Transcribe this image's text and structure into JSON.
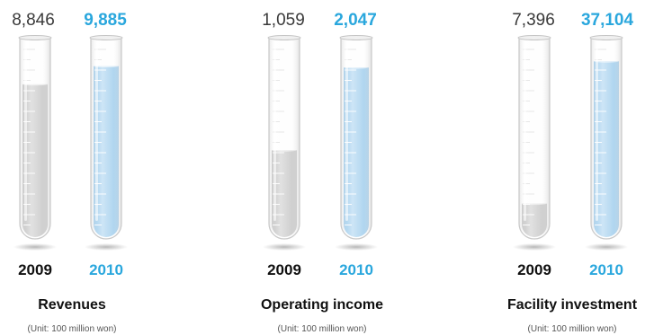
{
  "chart_data": [
    {
      "type": "bar",
      "title": "Revenues",
      "subtitle": "(Unit: 100 million won)",
      "categories": [
        "2009",
        "2010"
      ],
      "values": [
        8846,
        9885
      ],
      "value_labels": [
        "8,846",
        "9,885"
      ],
      "ylim": [
        0,
        11500
      ],
      "colors": [
        "#c9c9c9",
        "#a9d2ee"
      ]
    },
    {
      "type": "bar",
      "title": "Operating income",
      "subtitle": "(Unit: 100 million won)",
      "categories": [
        "2009",
        "2010"
      ],
      "values": [
        1059,
        2047
      ],
      "value_labels": [
        "1,059",
        "2,047"
      ],
      "ylim": [
        0,
        2400
      ],
      "colors": [
        "#c9c9c9",
        "#a9d2ee"
      ]
    },
    {
      "type": "bar",
      "title": "Facility investment",
      "subtitle": "(Unit: 100 million won)",
      "categories": [
        "2009",
        "2010"
      ],
      "values": [
        7396,
        37104
      ],
      "value_labels": [
        "7,396",
        "37,104"
      ],
      "ylim": [
        0,
        42000
      ],
      "colors": [
        "#c9c9c9",
        "#a9d2ee"
      ]
    }
  ]
}
